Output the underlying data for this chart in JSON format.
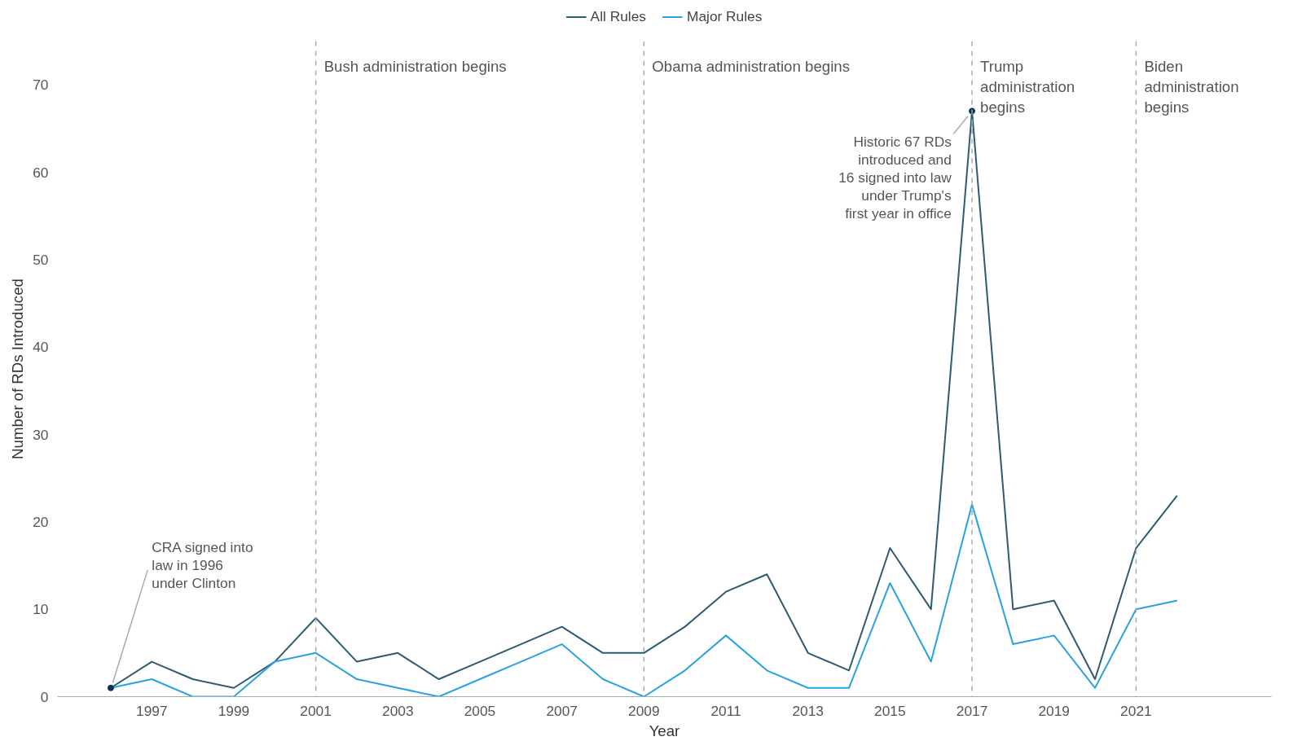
{
  "chart_data": {
    "type": "line",
    "xlabel": "Year",
    "ylabel": "Number of RDs Introduced",
    "x": [
      1996,
      1997,
      1998,
      1999,
      2000,
      2001,
      2002,
      2003,
      2004,
      2005,
      2006,
      2007,
      2008,
      2009,
      2010,
      2011,
      2012,
      2013,
      2014,
      2015,
      2016,
      2017,
      2018,
      2019,
      2020,
      2021,
      2022
    ],
    "series": [
      {
        "name": "All Rules",
        "color": "#2d5b73",
        "values": [
          1,
          4,
          2,
          1,
          4,
          9,
          4,
          5,
          2,
          4,
          6,
          8,
          5,
          5,
          8,
          12,
          14,
          5,
          3,
          17,
          10,
          67,
          10,
          11,
          2,
          17,
          23
        ]
      },
      {
        "name": "Major Rules",
        "color": "#29a3e0",
        "values": [
          1,
          2,
          0,
          0,
          4,
          5,
          2,
          1,
          0,
          2,
          4,
          6,
          2,
          0,
          3,
          7,
          3,
          1,
          1,
          13,
          4,
          22,
          6,
          7,
          1,
          10,
          11
        ]
      }
    ],
    "xlim": [
      1994.7,
      2024.3
    ],
    "ylim": [
      0,
      75
    ],
    "xticks": [
      1997,
      1999,
      2001,
      2003,
      2005,
      2007,
      2009,
      2011,
      2013,
      2015,
      2017,
      2019,
      2021
    ],
    "yticks": [
      0,
      10,
      20,
      30,
      40,
      50,
      60,
      70
    ],
    "ref_lines": [
      {
        "axis": "x",
        "value": 2001,
        "label": "Bush administration begins",
        "color": "#aaaaaa",
        "line_style": "dashed"
      },
      {
        "axis": "x",
        "value": 2009,
        "label": "Obama administration begins",
        "color": "#aaaaaa",
        "line_style": "dashed"
      },
      {
        "axis": "x",
        "value": 2017,
        "label": "Trump\nadministration\nbegins",
        "color": "#aaaaaa",
        "line_style": "dashed"
      },
      {
        "axis": "x",
        "value": 2021,
        "label": "Biden\nadministration\nbegins",
        "color": "#aaaaaa",
        "line_style": "dashed"
      }
    ],
    "annotations": [
      {
        "text": "CRA signed into\nlaw in 1996\nunder Clinton",
        "x": 1996,
        "y": 1
      },
      {
        "text": "Historic 67 RDs\nintroduced and\n16 signed into law\nunder Trump's\nfirst year in office",
        "x": 2017,
        "y": 67
      }
    ],
    "grid": false,
    "legend": "top",
    "marker": "none",
    "line_style": "solid"
  }
}
